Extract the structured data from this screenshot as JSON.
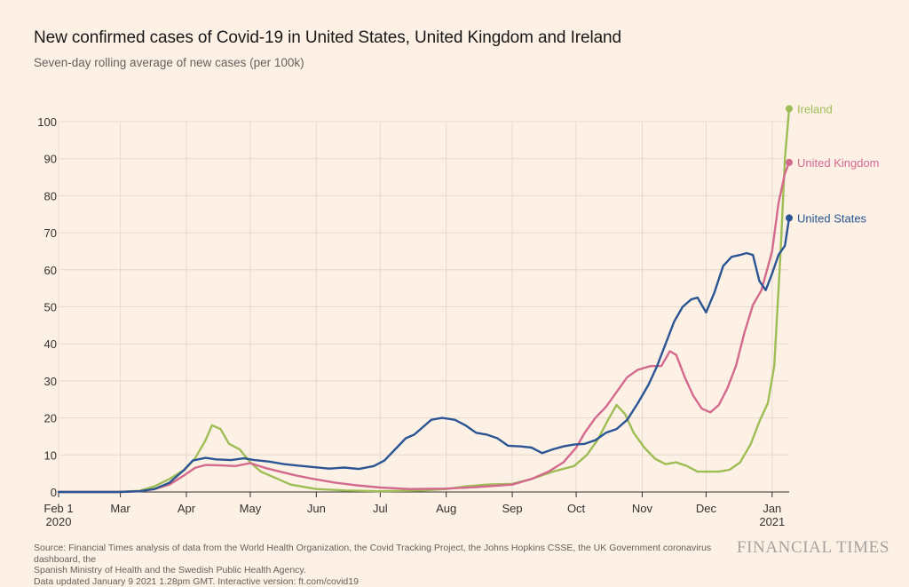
{
  "title": "New confirmed cases of Covid-19 in United States, United Kingdom and Ireland",
  "subtitle": "Seven-day rolling average of new cases (per 100k)",
  "source_line1": "Source: Financial Times analysis of data from the World Health Organization, the Covid Tracking Project, the Johns Hopkins CSSE, the UK Government coronavirus dashboard, the",
  "source_line2": "Spanish Ministry of Health and the Swedish Public Health Agency.",
  "source_line3": "Data updated January 9 2021 1.28pm GMT. Interactive version: ft.com/covid19",
  "brand": "FINANCIAL TIMES",
  "colors": {
    "grid": "#e6d9ce",
    "axis": "#33302e",
    "tick_text": "#33302e"
  },
  "chart_data": {
    "type": "line",
    "title": "New confirmed cases of Covid-19 in United States, United Kingdom and Ireland",
    "subtitle": "Seven-day rolling average of new cases (per 100k)",
    "xlabel": "",
    "ylabel": "",
    "x_range": [
      "2020-02-01",
      "2021-01-09"
    ],
    "ylim": [
      0,
      103
    ],
    "y_ticks": [
      0,
      10,
      20,
      30,
      40,
      50,
      60,
      70,
      80,
      90,
      100
    ],
    "x_ticks": [
      {
        "date": "2020-02-01",
        "label": "Feb 1",
        "label2": "2020"
      },
      {
        "date": "2020-03-01",
        "label": "Mar"
      },
      {
        "date": "2020-04-01",
        "label": "Apr"
      },
      {
        "date": "2020-05-01",
        "label": "May"
      },
      {
        "date": "2020-06-01",
        "label": "Jun"
      },
      {
        "date": "2020-07-01",
        "label": "Jul"
      },
      {
        "date": "2020-08-01",
        "label": "Aug"
      },
      {
        "date": "2020-09-01",
        "label": "Sep"
      },
      {
        "date": "2020-10-01",
        "label": "Oct"
      },
      {
        "date": "2020-11-01",
        "label": "Nov"
      },
      {
        "date": "2020-12-01",
        "label": "Dec"
      },
      {
        "date": "2021-01-01",
        "label": "Jan",
        "label2": "2021"
      }
    ],
    "grid": true,
    "series": [
      {
        "name": "United States",
        "color": "#2a5493",
        "points": [
          [
            "2020-02-01",
            0
          ],
          [
            "2020-02-29",
            0
          ],
          [
            "2020-03-10",
            0.2
          ],
          [
            "2020-03-17",
            0.8
          ],
          [
            "2020-03-24",
            2.5
          ],
          [
            "2020-03-31",
            6
          ],
          [
            "2020-04-04",
            8.5
          ],
          [
            "2020-04-10",
            9.2
          ],
          [
            "2020-04-15",
            8.8
          ],
          [
            "2020-04-22",
            8.6
          ],
          [
            "2020-04-28",
            9.1
          ],
          [
            "2020-05-03",
            8.6
          ],
          [
            "2020-05-10",
            8.2
          ],
          [
            "2020-05-17",
            7.5
          ],
          [
            "2020-05-24",
            7.1
          ],
          [
            "2020-05-31",
            6.7
          ],
          [
            "2020-06-07",
            6.3
          ],
          [
            "2020-06-14",
            6.6
          ],
          [
            "2020-06-21",
            6.2
          ],
          [
            "2020-06-28",
            7
          ],
          [
            "2020-07-03",
            8.5
          ],
          [
            "2020-07-08",
            11.5
          ],
          [
            "2020-07-13",
            14.5
          ],
          [
            "2020-07-17",
            15.5
          ],
          [
            "2020-07-21",
            17.5
          ],
          [
            "2020-07-25",
            19.5
          ],
          [
            "2020-07-30",
            20
          ],
          [
            "2020-08-05",
            19.5
          ],
          [
            "2020-08-10",
            18
          ],
          [
            "2020-08-15",
            16
          ],
          [
            "2020-08-20",
            15.5
          ],
          [
            "2020-08-25",
            14.5
          ],
          [
            "2020-08-30",
            12.5
          ],
          [
            "2020-09-05",
            12.3
          ],
          [
            "2020-09-10",
            12
          ],
          [
            "2020-09-15",
            10.5
          ],
          [
            "2020-09-20",
            11.5
          ],
          [
            "2020-09-25",
            12.3
          ],
          [
            "2020-09-30",
            12.8
          ],
          [
            "2020-10-05",
            13
          ],
          [
            "2020-10-10",
            14
          ],
          [
            "2020-10-15",
            16
          ],
          [
            "2020-10-20",
            17
          ],
          [
            "2020-10-25",
            19.5
          ],
          [
            "2020-10-30",
            24
          ],
          [
            "2020-11-04",
            29
          ],
          [
            "2020-11-08",
            34
          ],
          [
            "2020-11-12",
            40
          ],
          [
            "2020-11-16",
            46
          ],
          [
            "2020-11-20",
            50
          ],
          [
            "2020-11-24",
            52
          ],
          [
            "2020-11-27",
            52.5
          ],
          [
            "2020-12-01",
            48.5
          ],
          [
            "2020-12-05",
            54
          ],
          [
            "2020-12-09",
            61
          ],
          [
            "2020-12-13",
            63.5
          ],
          [
            "2020-12-17",
            64
          ],
          [
            "2020-12-20",
            64.5
          ],
          [
            "2020-12-23",
            64
          ],
          [
            "2020-12-26",
            57
          ],
          [
            "2020-12-29",
            54.5
          ],
          [
            "2021-01-01",
            59
          ],
          [
            "2021-01-04",
            64
          ],
          [
            "2021-01-07",
            66.5
          ],
          [
            "2021-01-09",
            74
          ]
        ]
      },
      {
        "name": "United Kingdom",
        "color": "#d4698e",
        "points": [
          [
            "2020-02-01",
            0
          ],
          [
            "2020-02-29",
            0
          ],
          [
            "2020-03-10",
            0.2
          ],
          [
            "2020-03-17",
            0.8
          ],
          [
            "2020-03-24",
            2
          ],
          [
            "2020-03-31",
            4.5
          ],
          [
            "2020-04-05",
            6.5
          ],
          [
            "2020-04-10",
            7.3
          ],
          [
            "2020-04-17",
            7.2
          ],
          [
            "2020-04-24",
            7
          ],
          [
            "2020-05-01",
            7.8
          ],
          [
            "2020-05-08",
            6.5
          ],
          [
            "2020-05-15",
            5.5
          ],
          [
            "2020-05-22",
            4.5
          ],
          [
            "2020-05-31",
            3.5
          ],
          [
            "2020-06-10",
            2.5
          ],
          [
            "2020-06-20",
            1.8
          ],
          [
            "2020-07-01",
            1.2
          ],
          [
            "2020-07-15",
            0.8
          ],
          [
            "2020-08-01",
            0.9
          ],
          [
            "2020-08-15",
            1.3
          ],
          [
            "2020-09-01",
            2
          ],
          [
            "2020-09-10",
            3.5
          ],
          [
            "2020-09-18",
            5.5
          ],
          [
            "2020-09-25",
            8
          ],
          [
            "2020-10-01",
            12
          ],
          [
            "2020-10-05",
            16
          ],
          [
            "2020-10-10",
            20
          ],
          [
            "2020-10-15",
            23
          ],
          [
            "2020-10-20",
            27
          ],
          [
            "2020-10-25",
            31
          ],
          [
            "2020-10-30",
            33
          ],
          [
            "2020-11-05",
            34
          ],
          [
            "2020-11-10",
            34
          ],
          [
            "2020-11-14",
            38
          ],
          [
            "2020-11-17",
            37
          ],
          [
            "2020-11-21",
            31
          ],
          [
            "2020-11-25",
            26
          ],
          [
            "2020-11-29",
            22.5
          ],
          [
            "2020-12-03",
            21.5
          ],
          [
            "2020-12-07",
            23.5
          ],
          [
            "2020-12-11",
            28
          ],
          [
            "2020-12-15",
            34
          ],
          [
            "2020-12-19",
            43
          ],
          [
            "2020-12-23",
            50.5
          ],
          [
            "2020-12-27",
            54.5
          ],
          [
            "2021-01-01",
            65
          ],
          [
            "2021-01-04",
            78
          ],
          [
            "2021-01-07",
            86
          ],
          [
            "2021-01-09",
            89
          ]
        ]
      },
      {
        "name": "Ireland",
        "color": "#9fbd55",
        "points": [
          [
            "2020-02-01",
            0
          ],
          [
            "2020-02-29",
            0
          ],
          [
            "2020-03-10",
            0.3
          ],
          [
            "2020-03-17",
            1.5
          ],
          [
            "2020-03-24",
            3.5
          ],
          [
            "2020-03-31",
            6
          ],
          [
            "2020-04-05",
            9
          ],
          [
            "2020-04-10",
            14
          ],
          [
            "2020-04-13",
            18
          ],
          [
            "2020-04-17",
            17
          ],
          [
            "2020-04-21",
            13
          ],
          [
            "2020-04-26",
            11.5
          ],
          [
            "2020-05-01",
            8
          ],
          [
            "2020-05-06",
            5.5
          ],
          [
            "2020-05-12",
            4
          ],
          [
            "2020-05-20",
            2
          ],
          [
            "2020-06-01",
            0.8
          ],
          [
            "2020-06-15",
            0.4
          ],
          [
            "2020-07-01",
            0.2
          ],
          [
            "2020-07-20",
            0.4
          ],
          [
            "2020-08-01",
            0.8
          ],
          [
            "2020-08-10",
            1.5
          ],
          [
            "2020-08-20",
            2
          ],
          [
            "2020-09-01",
            2.2
          ],
          [
            "2020-09-10",
            3.5
          ],
          [
            "2020-09-20",
            5.5
          ],
          [
            "2020-09-30",
            7
          ],
          [
            "2020-10-06",
            10
          ],
          [
            "2020-10-11",
            14
          ],
          [
            "2020-10-16",
            19.5
          ],
          [
            "2020-10-20",
            23.5
          ],
          [
            "2020-10-24",
            21
          ],
          [
            "2020-10-28",
            16
          ],
          [
            "2020-11-02",
            12
          ],
          [
            "2020-11-07",
            9
          ],
          [
            "2020-11-12",
            7.5
          ],
          [
            "2020-11-17",
            8
          ],
          [
            "2020-11-22",
            7
          ],
          [
            "2020-11-27",
            5.5
          ],
          [
            "2020-12-02",
            5.5
          ],
          [
            "2020-12-07",
            5.5
          ],
          [
            "2020-12-12",
            6
          ],
          [
            "2020-12-17",
            8
          ],
          [
            "2020-12-22",
            13
          ],
          [
            "2020-12-26",
            19
          ],
          [
            "2020-12-30",
            24
          ],
          [
            "2021-01-02",
            34
          ],
          [
            "2021-01-05",
            65
          ],
          [
            "2021-01-07",
            90
          ],
          [
            "2021-01-09",
            103.5
          ]
        ]
      }
    ]
  }
}
